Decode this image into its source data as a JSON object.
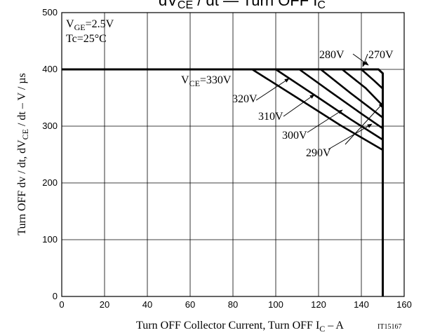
{
  "chart_data": {
    "type": "line",
    "title_parts": {
      "a": "dV",
      "a_sub": "CE",
      "b": " / dt — Turn OFF I",
      "b_sub": "C"
    },
    "xlabel_parts": {
      "main": "Turn OFF Collector Current, Turn OFF I",
      "sub": "C",
      "tail": " – A"
    },
    "ylabel_parts": {
      "main": "Turn OFF dv / dt, dV",
      "sub": "CE",
      "tail": " / dt  –  V / µs"
    },
    "doc_id": "IT15167",
    "conditions": {
      "vge": {
        "main": "V",
        "sub": "GE",
        "tail": "=2.5V"
      },
      "tc": "Tc=25°C"
    },
    "xlim": [
      0,
      160
    ],
    "ylim": [
      0,
      500
    ],
    "x_ticks": [
      0,
      20,
      40,
      60,
      80,
      100,
      120,
      140,
      160
    ],
    "y_ticks": [
      0,
      100,
      200,
      300,
      400,
      500
    ],
    "x_tick_labels": [
      "0",
      "20",
      "40",
      "60",
      "80",
      "100",
      "120",
      "140",
      "160"
    ],
    "y_tick_labels": [
      "0",
      "100",
      "200",
      "300",
      "400",
      "500"
    ],
    "grid": true,
    "envelope": {
      "x": [
        0,
        148,
        150,
        150
      ],
      "y": [
        400,
        400,
        393,
        0
      ]
    },
    "series": [
      {
        "name": "330V",
        "label_parts": {
          "main": "V",
          "sub": "CE",
          "tail": "=330V"
        },
        "x": [
          89,
          110,
          130,
          150
        ],
        "y": [
          400,
          350,
          302,
          258
        ]
      },
      {
        "name": "320V",
        "label": "320V",
        "x": [
          100,
          120,
          135,
          150
        ],
        "y": [
          400,
          350,
          312,
          276
        ]
      },
      {
        "name": "310V",
        "label": "310V",
        "x": [
          111,
          125,
          140,
          150
        ],
        "y": [
          400,
          362,
          322,
          296
        ]
      },
      {
        "name": "300V",
        "label": "300V",
        "x": [
          121,
          135,
          150
        ],
        "y": [
          400,
          358,
          315
        ]
      },
      {
        "name": "290V",
        "label": "290V",
        "x": [
          131,
          142,
          150
        ],
        "y": [
          400,
          367,
          336
        ]
      },
      {
        "name": "280V",
        "label": "280V",
        "x": [
          140,
          146,
          150
        ],
        "y": [
          400,
          380,
          366
        ]
      },
      {
        "name": "270V",
        "label": "270V",
        "x": [
          148
        ],
        "y": [
          395
        ]
      }
    ]
  }
}
